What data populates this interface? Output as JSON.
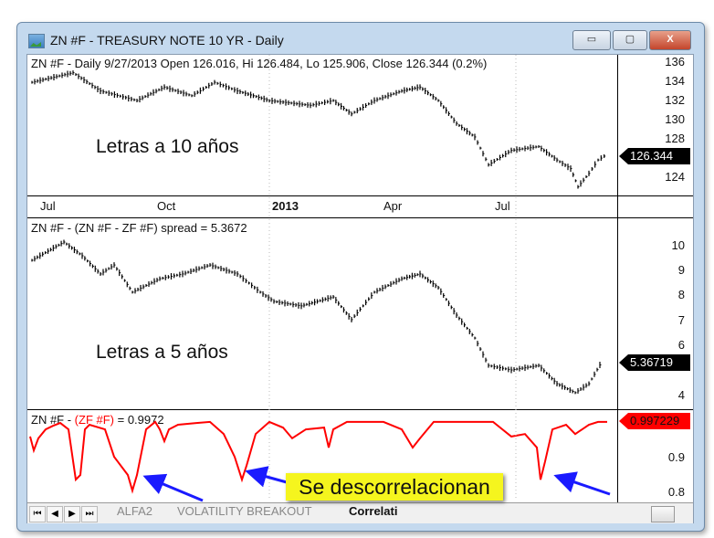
{
  "window": {
    "title": "ZN #F - TREASURY NOTE 10 YR - Daily",
    "minimize": "▭",
    "maximize": "▢",
    "close": "X"
  },
  "pane1": {
    "header": "ZN #F - Daily 9/27/2013 Open 126.016, Hi 126.484, Lo 125.906, Close 126.344 (0.2%)",
    "annotation": "Letras a 10 años",
    "last_value": "126.344",
    "ticks": [
      "136",
      "134",
      "132",
      "130",
      "128",
      "124"
    ]
  },
  "date_axis": [
    "Jul",
    "Oct",
    "2013",
    "Apr",
    "Jul"
  ],
  "pane2": {
    "header": "ZN #F - (ZN #F - ZF #F) spread = 5.3672",
    "annotation": "Letras a 5 años",
    "last_value": "5.36719",
    "ticks": [
      "10",
      "9",
      "8",
      "7",
      "6",
      "4"
    ]
  },
  "pane3": {
    "header_prefix": "ZN #F - ",
    "header_series": "(ZF #F)",
    "header_suffix": " = 0.9972",
    "last_value": "0.997229",
    "ticks": [
      "0.9",
      "0.8"
    ]
  },
  "callout": "Se descorrelacionan",
  "tabs": {
    "nav": [
      "⏮",
      "◀",
      "▶",
      "⏭"
    ],
    "items": [
      "ALFA2",
      "VOLATILITY BREAKOUT",
      "Correlati"
    ]
  },
  "colors": {
    "price": "#000000",
    "correlation": "#ff0000",
    "arrow": "#1a1aff",
    "callout": "#f5f51e"
  },
  "chart_data": [
    {
      "type": "bar",
      "title": "ZN #F - Daily",
      "ylim": [
        122,
        137
      ],
      "values": [
        133.8,
        134.8,
        132.9,
        131.9,
        133.3,
        132.4,
        133.8,
        132.9,
        131.9,
        131.4,
        131.9,
        130.5,
        131.9,
        132.9,
        133.3,
        131.9,
        129.5,
        128.1,
        125.2,
        126.7,
        127.1,
        125.7,
        124.8,
        122.9,
        124.3,
        125.7,
        126.3
      ]
    },
    {
      "type": "bar",
      "title": "(ZN #F - ZF #F) spread",
      "ylim": [
        3.6,
        10.7
      ],
      "values": [
        9.38,
        10.11,
        9.56,
        8.83,
        9.19,
        8.1,
        8.64,
        8.83,
        9.19,
        8.83,
        8.1,
        7.73,
        7.55,
        7.91,
        7.0,
        8.1,
        8.64,
        8.83,
        8.28,
        7.18,
        6.26,
        5.16,
        4.98,
        5.16,
        4.43,
        4.07,
        4.43,
        5.37
      ]
    },
    {
      "type": "line",
      "title": "(ZF #F) correlation",
      "ylim": [
        0.77,
        1.02
      ],
      "values": [
        0.949,
        0.91,
        0.944,
        0.969,
        0.979,
        0.987,
        0.969,
        0.828,
        0.841,
        0.969,
        0.982,
        0.969,
        0.892,
        0.841,
        0.797,
        0.841,
        0.969,
        0.99,
        0.969,
        0.936,
        0.969,
        0.982,
        0.987,
        0.99,
        0.956,
        0.892,
        0.828,
        0.867,
        0.956,
        0.99,
        0.974,
        0.944,
        0.969,
        0.974,
        0.918,
        0.969,
        0.99,
        0.99,
        0.969,
        0.918,
        0.944,
        0.99,
        0.99,
        0.949,
        0.956,
        0.918,
        0.828,
        0.879,
        0.969,
        0.982,
        0.956,
        0.982,
        0.99,
        0.99
      ]
    }
  ]
}
